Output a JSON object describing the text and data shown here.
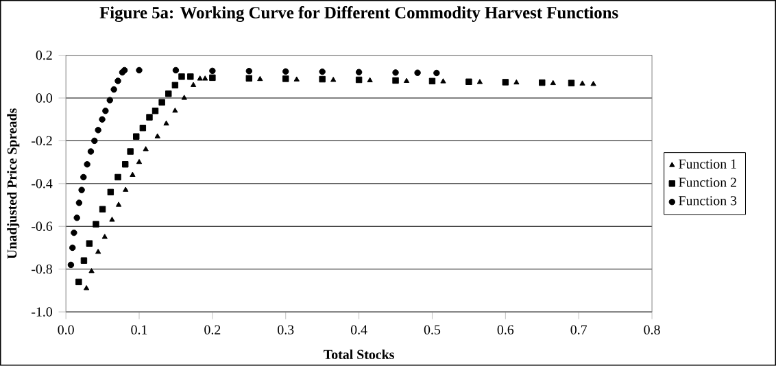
{
  "chart_data": {
    "type": "scatter",
    "title": "Figure 5a: Working Curve for Different Commodity Harvest Functions",
    "xlabel": "Total Stocks",
    "ylabel": "Unadjusted Price Spreads",
    "xlim": [
      0,
      0.8
    ],
    "ylim": [
      -1,
      0.2
    ],
    "xticks": [
      {
        "value": 0,
        "label": "0.0"
      },
      {
        "value": 0.1,
        "label": "0.1"
      },
      {
        "value": 0.2,
        "label": "0.2"
      },
      {
        "value": 0.3,
        "label": "0.3"
      },
      {
        "value": 0.4,
        "label": "0.4"
      },
      {
        "value": 0.5,
        "label": "0.5"
      },
      {
        "value": 0.6,
        "label": "0.6"
      },
      {
        "value": 0.7,
        "label": "0.7"
      },
      {
        "value": 0.8,
        "label": "0.8"
      }
    ],
    "yticks": [
      {
        "value": -1,
        "label": "-1.0"
      },
      {
        "value": -0.8,
        "label": "-0.8"
      },
      {
        "value": -0.6,
        "label": "-0.6"
      },
      {
        "value": -0.4,
        "label": "-0.4"
      },
      {
        "value": -0.2,
        "label": "-0.2"
      },
      {
        "value": 0,
        "label": "0.0"
      },
      {
        "value": 0.2,
        "label": "0.2"
      }
    ],
    "grid": "y",
    "legend": "right",
    "series": [
      {
        "name": "Function 1",
        "color": "#000000",
        "marker": "triangle",
        "x": [
          0.028,
          0.035,
          0.044,
          0.053,
          0.063,
          0.072,
          0.0815,
          0.091,
          0.1,
          0.109,
          0.125,
          0.137,
          0.149,
          0.1615,
          0.174,
          0.183,
          0.19,
          0.265,
          0.315,
          0.365,
          0.415,
          0.465,
          0.515,
          0.565,
          0.615,
          0.665,
          0.705,
          0.72
        ],
        "values": [
          -0.89,
          -0.81,
          -0.72,
          -0.65,
          -0.57,
          -0.5,
          -0.43,
          -0.36,
          -0.3,
          -0.24,
          -0.18,
          -0.12,
          -0.06,
          0.0,
          0.06,
          0.09,
          0.09,
          0.088,
          0.086,
          0.084,
          0.082,
          0.079,
          0.077,
          0.074,
          0.072,
          0.069,
          0.067,
          0.065
        ]
      },
      {
        "name": "Function 2",
        "color": "#000000",
        "marker": "square",
        "x": [
          0.0175,
          0.0246,
          0.032,
          0.041,
          0.05,
          0.061,
          0.071,
          0.081,
          0.088,
          0.096,
          0.105,
          0.114,
          0.122,
          0.131,
          0.14,
          0.149,
          0.158,
          0.17,
          0.2,
          0.25,
          0.3,
          0.35,
          0.4,
          0.45,
          0.5,
          0.55,
          0.6,
          0.65,
          0.69
        ],
        "values": [
          -0.86,
          -0.76,
          -0.68,
          -0.59,
          -0.52,
          -0.44,
          -0.37,
          -0.31,
          -0.25,
          -0.18,
          -0.14,
          -0.09,
          -0.06,
          -0.02,
          0.02,
          0.06,
          0.1,
          0.1,
          0.095,
          0.092,
          0.09,
          0.088,
          0.085,
          0.082,
          0.079,
          0.076,
          0.074,
          0.072,
          0.07
        ]
      },
      {
        "name": "Function 3",
        "color": "#000000",
        "marker": "circle",
        "x": [
          0.0068,
          0.009,
          0.011,
          0.015,
          0.018,
          0.0215,
          0.024,
          0.029,
          0.034,
          0.039,
          0.044,
          0.0495,
          0.054,
          0.06,
          0.0655,
          0.071,
          0.077,
          0.08,
          0.1,
          0.15,
          0.2,
          0.25,
          0.3,
          0.35,
          0.4,
          0.45,
          0.48,
          0.506
        ],
        "values": [
          -0.78,
          -0.7,
          -0.63,
          -0.56,
          -0.49,
          -0.43,
          -0.37,
          -0.31,
          -0.25,
          -0.2,
          -0.15,
          -0.1,
          -0.06,
          -0.01,
          0.04,
          0.08,
          0.12,
          0.13,
          0.13,
          0.13,
          0.127,
          0.126,
          0.124,
          0.123,
          0.121,
          0.119,
          0.118,
          0.117
        ]
      }
    ]
  }
}
